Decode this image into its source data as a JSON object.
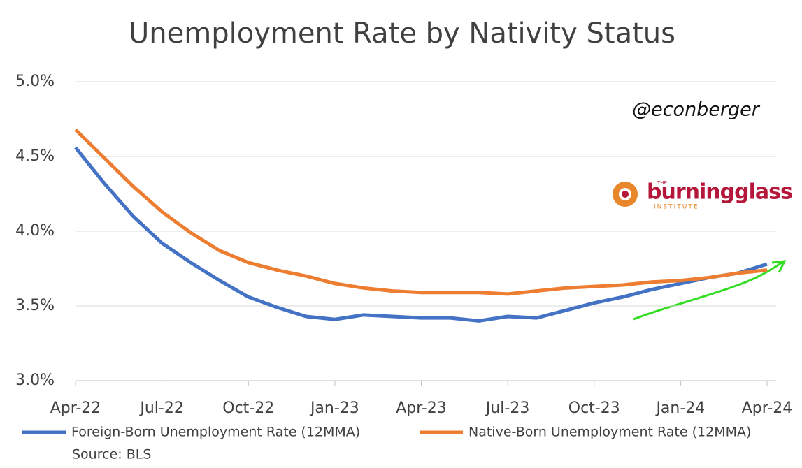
{
  "chart_data": {
    "type": "line",
    "title": "Unemployment Rate by Nativity Status",
    "watermark": "@econberger",
    "logo": {
      "small": "THE",
      "name": "burningglass",
      "sub": "INSTITUTE"
    },
    "source": "Source: BLS",
    "categories": [
      "Apr-22",
      null,
      null,
      "Jul-22",
      null,
      null,
      "Oct-22",
      null,
      null,
      "Jan-23",
      null,
      null,
      "Apr-23",
      null,
      null,
      "Jul-23",
      null,
      null,
      "Oct-23",
      null,
      null,
      "Jan-24",
      null,
      null,
      "Apr-24"
    ],
    "series": [
      {
        "name": "Foreign-Born Unemployment Rate (12MMA)",
        "color": "#4472c4",
        "values": [
          4.56,
          4.32,
          4.1,
          3.92,
          3.79,
          3.67,
          3.56,
          3.49,
          3.43,
          3.41,
          3.44,
          3.43,
          3.42,
          3.42,
          3.4,
          3.43,
          3.42,
          3.47,
          3.52,
          3.56,
          3.61,
          3.65,
          3.69,
          3.72,
          3.78
        ]
      },
      {
        "name": "Native-Born Unemployment Rate (12MMA)",
        "color": "#ed7d31",
        "values": [
          4.68,
          4.49,
          4.3,
          4.13,
          3.99,
          3.87,
          3.79,
          3.74,
          3.7,
          3.65,
          3.62,
          3.6,
          3.59,
          3.59,
          3.59,
          3.58,
          3.6,
          3.62,
          3.63,
          3.64,
          3.66,
          3.67,
          3.69,
          3.72,
          3.74
        ]
      }
    ],
    "ylim": [
      3.0,
      5.0
    ],
    "yticks": [
      {
        "value": 3.0,
        "label": "3.0%"
      },
      {
        "value": 3.5,
        "label": "3.5%"
      },
      {
        "value": 4.0,
        "label": "4.0%"
      },
      {
        "value": 4.5,
        "label": "4.5%"
      },
      {
        "value": 5.0,
        "label": "5.0%"
      }
    ],
    "grid": true
  }
}
